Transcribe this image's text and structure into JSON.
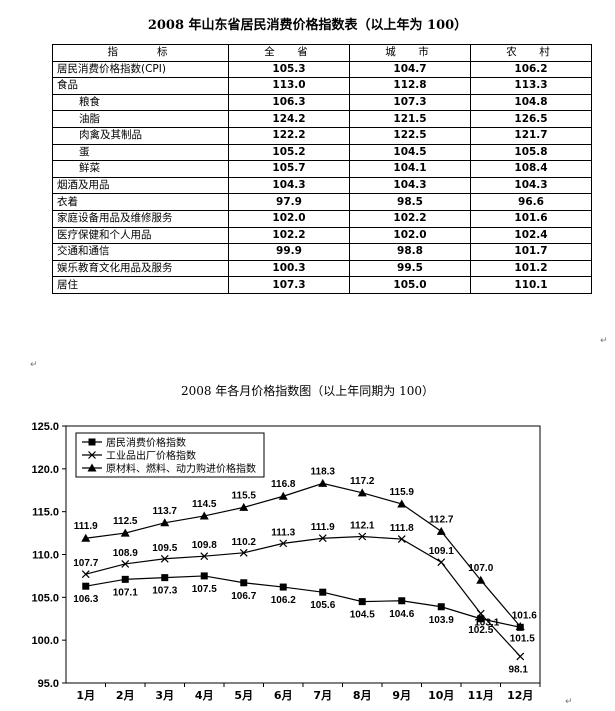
{
  "table": {
    "title": "2008 年山东省居民消费价格指数表（以上年为 100）",
    "headers": [
      "指　　标",
      "全　省",
      "城　市",
      "农　村"
    ],
    "rows": [
      {
        "name": "居民消费价格指数(CPI)",
        "sub": false,
        "values": [
          "105.3",
          "104.7",
          "106.2"
        ]
      },
      {
        "name": "食品",
        "sub": false,
        "values": [
          "113.0",
          "112.8",
          "113.3"
        ]
      },
      {
        "name": "粮食",
        "sub": true,
        "values": [
          "106.3",
          "107.3",
          "104.8"
        ]
      },
      {
        "name": "油脂",
        "sub": true,
        "values": [
          "124.2",
          "121.5",
          "126.5"
        ]
      },
      {
        "name": "肉禽及其制品",
        "sub": true,
        "values": [
          "122.2",
          "122.5",
          "121.7"
        ]
      },
      {
        "name": "蛋",
        "sub": true,
        "values": [
          "105.2",
          "104.5",
          "105.8"
        ]
      },
      {
        "name": "鲜菜",
        "sub": true,
        "values": [
          "105.7",
          "104.1",
          "108.4"
        ]
      },
      {
        "name": "烟酒及用品",
        "sub": false,
        "values": [
          "104.3",
          "104.3",
          "104.3"
        ]
      },
      {
        "name": "衣着",
        "sub": false,
        "values": [
          "97.9",
          "98.5",
          "96.6"
        ]
      },
      {
        "name": "家庭设备用品及维修服务",
        "sub": false,
        "values": [
          "102.0",
          "102.2",
          "101.6"
        ]
      },
      {
        "name": "医疗保健和个人用品",
        "sub": false,
        "values": [
          "102.2",
          "102.0",
          "102.4"
        ]
      },
      {
        "name": "交通和通信",
        "sub": false,
        "values": [
          "99.9",
          "98.8",
          "101.7"
        ]
      },
      {
        "name": "娱乐教育文化用品及服务",
        "sub": false,
        "values": [
          "100.3",
          "99.5",
          "101.2"
        ]
      },
      {
        "name": "居住",
        "sub": false,
        "values": [
          "107.3",
          "105.0",
          "110.1"
        ]
      }
    ]
  },
  "return_mark": "↵",
  "chart_data": {
    "type": "line",
    "title": "2008 年各月价格指数图（以上年同期为 100）",
    "categories": [
      "1月",
      "2月",
      "3月",
      "4月",
      "5月",
      "6月",
      "7月",
      "8月",
      "9月",
      "10月",
      "11月",
      "12月"
    ],
    "ylim": [
      95.0,
      125.0
    ],
    "yticks": [
      "95.0",
      "100.0",
      "105.0",
      "110.0",
      "115.0",
      "120.0",
      "125.0"
    ],
    "legend_position": "top-left",
    "series": [
      {
        "name": "居民消费价格指数",
        "marker": "square",
        "values": [
          106.3,
          107.1,
          107.3,
          107.5,
          106.7,
          106.2,
          105.6,
          104.5,
          104.6,
          103.9,
          102.5,
          101.5
        ]
      },
      {
        "name": "工业品出厂价格指数",
        "marker": "x",
        "values": [
          107.7,
          108.9,
          109.5,
          109.8,
          110.2,
          111.3,
          111.9,
          112.1,
          111.8,
          109.1,
          103.1,
          98.1
        ]
      },
      {
        "name": "原材料、燃料、动力购进价格指数",
        "marker": "triangle",
        "values": [
          111.9,
          112.5,
          113.7,
          114.5,
          115.5,
          116.8,
          118.3,
          117.2,
          115.9,
          112.7,
          107.0,
          101.6
        ]
      }
    ],
    "data_labels": [
      [
        "106.3",
        "107.1",
        "107.3",
        "107.5",
        "106.7",
        "106.2",
        "105.6",
        "104.5",
        "104.6",
        "103.9",
        "102.5",
        "101.5"
      ],
      [
        "107.7",
        "108.9",
        "109.5",
        "109.8",
        "110.2",
        "111.3",
        "111.9",
        "112.1",
        "111.8",
        "109.1",
        "103.1",
        "98.1"
      ],
      [
        "111.9",
        "112.5",
        "113.7",
        "114.5",
        "115.5",
        "116.8",
        "118.3",
        "117.2",
        "115.9",
        "112.7",
        "107.0",
        "101.6"
      ]
    ]
  }
}
